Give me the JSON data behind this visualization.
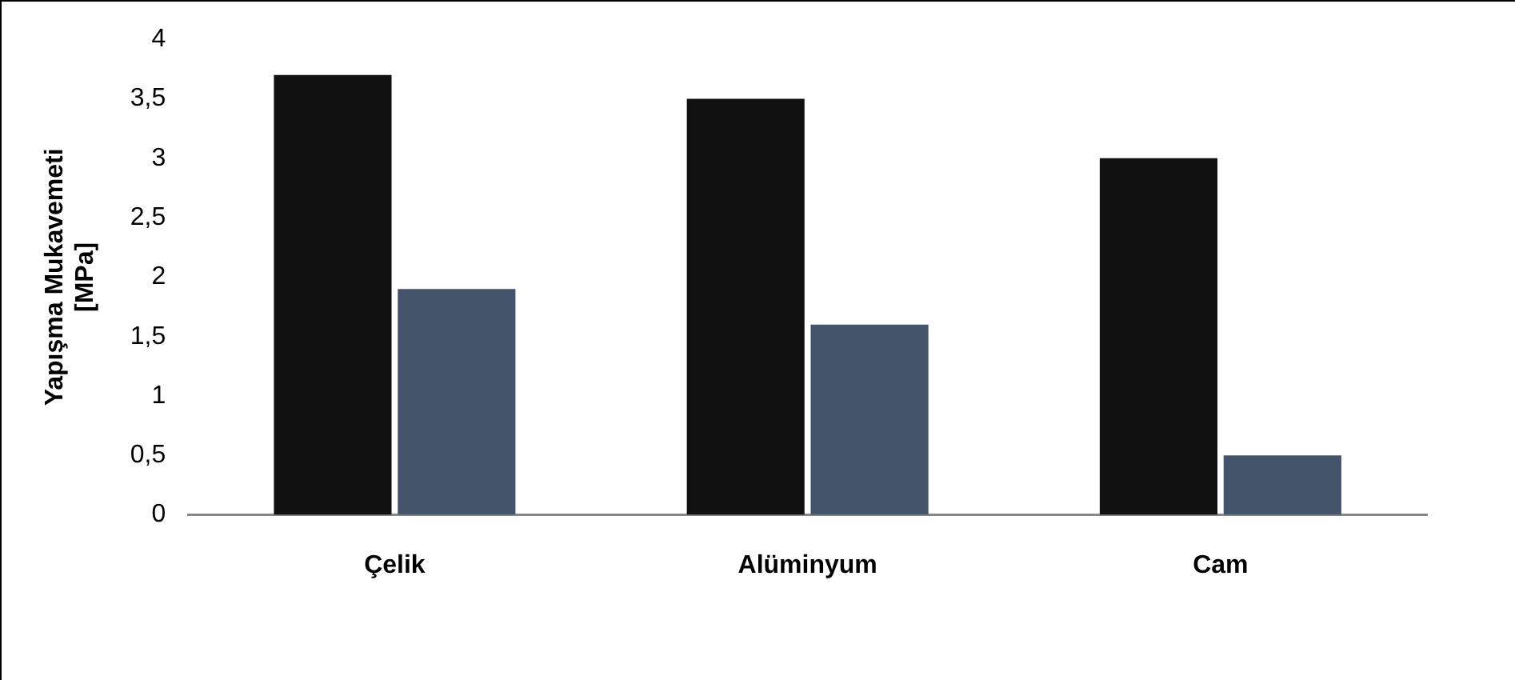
{
  "chart_data": {
    "type": "bar",
    "ylabel": "Yapışma Mukavemeti\n[MPa]",
    "categories": [
      "Çelik",
      "Alüminyum",
      "Cam"
    ],
    "series": [
      {
        "color": "#111111",
        "values": [
          3.7,
          3.5,
          3.0
        ]
      },
      {
        "color": "#44546a",
        "values": [
          1.9,
          1.6,
          0.5
        ]
      }
    ],
    "ylim": [
      0,
      4
    ],
    "yticks": [
      0,
      {
        "value": 0.5,
        "label": "0,5"
      },
      1,
      {
        "value": 1.5,
        "label": "1,5"
      },
      2,
      {
        "value": 2.5,
        "label": "2,5"
      },
      3,
      {
        "value": 3.5,
        "label": "3,5"
      },
      4
    ],
    "grid": false,
    "legend": false
  }
}
